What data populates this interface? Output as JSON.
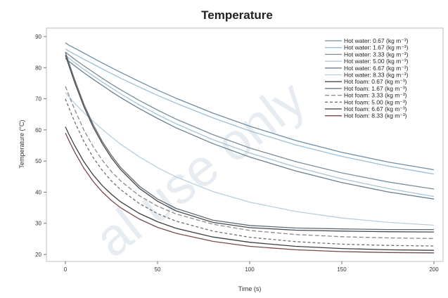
{
  "watermark": "al use only",
  "chart_data": {
    "type": "line",
    "title": "Temperature",
    "xlabel": "Time (s)",
    "ylabel": "Temperature (°C)",
    "xlim": [
      0,
      200
    ],
    "ylim": [
      20,
      90
    ],
    "xticks": [
      0,
      50,
      100,
      150,
      200
    ],
    "yticks": [
      20,
      30,
      40,
      50,
      60,
      70,
      80,
      90
    ],
    "grid": false,
    "legend_position": "top-right",
    "x": [
      0,
      2,
      5,
      10,
      15,
      20,
      25,
      30,
      40,
      50,
      60,
      80,
      100,
      125,
      150,
      175,
      200
    ],
    "series": [
      {
        "name": "Hot water: 0.67 (kg m⁻³)",
        "color": "#6f8fa8",
        "dash": "",
        "values": [
          88,
          87.2,
          86.3,
          84.7,
          83.1,
          81.5,
          80.0,
          78.5,
          75.6,
          72.8,
          70.2,
          65.4,
          61.2,
          56.6,
          52.8,
          49.7,
          47.2
        ]
      },
      {
        "name": "Hot water: 1.67 (kg m⁻³)",
        "color": "#9dbfd6",
        "dash": "",
        "values": [
          86,
          85.3,
          84.3,
          82.7,
          81.2,
          79.6,
          78.1,
          76.6,
          73.8,
          71.1,
          68.6,
          63.9,
          59.7,
          55.2,
          51.5,
          48.4,
          45.8
        ]
      },
      {
        "name": "Hot water: 3.33 (kg m⁻³)",
        "color": "#7a8f9c",
        "dash": "",
        "values": [
          85,
          84.1,
          82.7,
          80.6,
          78.6,
          76.6,
          74.7,
          72.9,
          69.5,
          66.4,
          63.5,
          58.5,
          54.2,
          49.8,
          46.2,
          43.3,
          41.0
        ]
      },
      {
        "name": "Hot water: 5.00 (kg m⁻³)",
        "color": "#a7c4d8",
        "dash": "",
        "values": [
          84,
          83.0,
          81.6,
          79.5,
          77.4,
          75.4,
          73.5,
          71.6,
          68.1,
          64.9,
          62.0,
          56.9,
          52.6,
          48.1,
          44.3,
          41.2,
          38.6
        ]
      },
      {
        "name": "Hot water: 6.67 (kg m⁻³)",
        "color": "#6b7f8e",
        "dash": "",
        "values": [
          83,
          82.0,
          80.6,
          78.4,
          76.3,
          74.3,
          72.3,
          70.4,
          66.9,
          63.7,
          60.7,
          55.6,
          51.3,
          46.8,
          43.1,
          40.1,
          37.8
        ]
      },
      {
        "name": "Hot water: 8.33 (kg m⁻³)",
        "color": "#b6cfdf",
        "dash": "",
        "values": [
          72,
          70.6,
          68.6,
          65.6,
          62.8,
          60.2,
          57.7,
          55.4,
          51.4,
          47.9,
          44.9,
          40.2,
          36.8,
          33.8,
          31.7,
          30.3,
          29.4
        ]
      },
      {
        "name": "Hot foam:  0.67 (kg m⁻³)",
        "color": "#4a4a4a",
        "dash": "",
        "values": [
          84,
          80.5,
          75.3,
          67.5,
          61.0,
          55.6,
          51.0,
          47.2,
          41.3,
          37.1,
          34.0,
          30.3,
          28.6,
          27.8,
          27.5,
          27.3,
          27.2
        ]
      },
      {
        "name": "Hot foam:  1.67 (kg m⁻³)",
        "color": "#5e6b75",
        "dash": "",
        "values": [
          85,
          81.4,
          76.2,
          68.3,
          61.8,
          56.3,
          51.8,
          47.9,
          42.0,
          37.8,
          34.8,
          31.0,
          29.3,
          28.5,
          28.2,
          28.0,
          28.0
        ]
      },
      {
        "name": "Hot foam:  3.33 (kg m⁻³)",
        "color": "#8a8a8a",
        "dash": "6,3",
        "values": [
          74,
          71.0,
          66.6,
          60.0,
          54.7,
          50.3,
          46.6,
          43.6,
          38.9,
          35.5,
          33.0,
          29.7,
          27.7,
          26.4,
          25.7,
          25.3,
          25.1
        ]
      },
      {
        "name": "Hot foam:  5.00 (kg m⁻³)",
        "color": "#6f6f6f",
        "dash": "4,3",
        "values": [
          70,
          67.0,
          62.6,
          56.3,
          51.2,
          47.0,
          43.6,
          40.8,
          36.4,
          33.1,
          30.7,
          27.5,
          25.5,
          24.1,
          23.3,
          22.9,
          22.7
        ]
      },
      {
        "name": "Hot foam:  6.67 (kg m⁻³)",
        "color": "#3e3e3e",
        "dash": "",
        "values": [
          61,
          58.5,
          55.0,
          49.8,
          45.6,
          42.1,
          39.3,
          36.9,
          33.2,
          30.5,
          28.4,
          25.6,
          23.9,
          22.6,
          21.9,
          21.5,
          21.3
        ]
      },
      {
        "name": "Hot foam:  8.33 (kg m⁻³)",
        "color": "#7a4a4a",
        "dash": "",
        "values": [
          59,
          56.5,
          52.9,
          47.7,
          43.5,
          40.1,
          37.3,
          35.0,
          31.4,
          28.7,
          26.8,
          24.2,
          22.6,
          21.5,
          20.9,
          20.6,
          20.5
        ]
      }
    ]
  }
}
